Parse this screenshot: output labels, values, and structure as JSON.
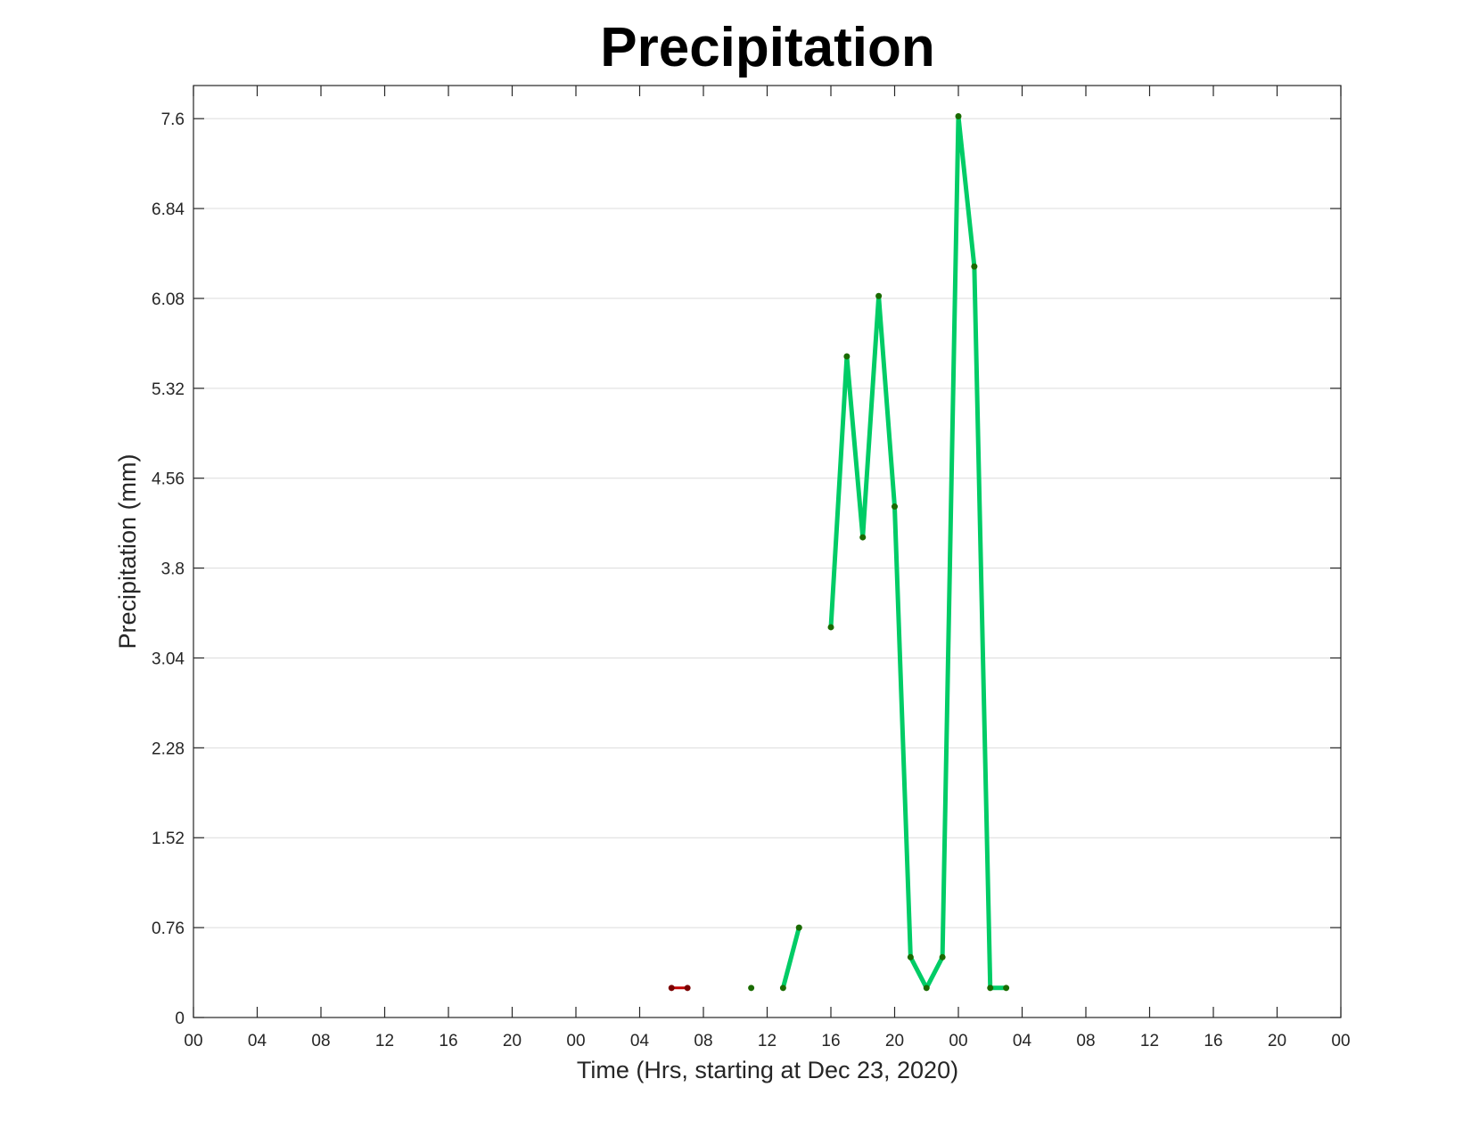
{
  "chart_data": {
    "type": "line",
    "title": "Precipitation",
    "xlabel": "Time (Hrs, starting at Dec 23, 2020)",
    "ylabel": "Precipitation (mm)",
    "x_unit": "hours",
    "xlim": [
      0,
      72
    ],
    "ylim": [
      0,
      7.88
    ],
    "x_tick_values": [
      0,
      4,
      8,
      12,
      16,
      20,
      24,
      28,
      32,
      36,
      40,
      44,
      48,
      52,
      56,
      60,
      64,
      68,
      72
    ],
    "x_tick_labels": [
      "00",
      "04",
      "08",
      "12",
      "16",
      "20",
      "00",
      "04",
      "08",
      "12",
      "16",
      "20",
      "00",
      "04",
      "08",
      "12",
      "16",
      "20",
      "00"
    ],
    "y_ticks": [
      0,
      0.76,
      1.52,
      2.28,
      3.04,
      3.8,
      4.56,
      5.32,
      6.08,
      6.84,
      7.6
    ],
    "y_tick_labels": [
      "0",
      "0.76",
      "1.52",
      "2.28",
      "3.04",
      "3.8",
      "4.56",
      "5.32",
      "6.08",
      "6.84",
      "7.6"
    ],
    "grid": "horizontal",
    "legend": "none",
    "series": [
      {
        "color": "#c00000",
        "marker_color": "#7a0000",
        "segments": [
          [
            [
              30,
              0.25
            ],
            [
              31,
              0.25
            ]
          ]
        ]
      },
      {
        "color": "#00cc66",
        "marker_color": "#1a6b00",
        "segments": [
          [
            [
              35,
              0.25
            ]
          ],
          [
            [
              37,
              0.25
            ],
            [
              38,
              0.76
            ]
          ],
          [
            [
              40,
              3.3
            ],
            [
              41,
              5.59
            ],
            [
              42,
              4.06
            ],
            [
              43,
              6.1
            ],
            [
              44,
              4.32
            ],
            [
              45,
              0.51
            ],
            [
              46,
              0.25
            ],
            [
              47,
              0.51
            ],
            [
              48,
              7.62
            ],
            [
              49,
              6.35
            ],
            [
              50,
              0.25
            ],
            [
              51,
              0.25
            ]
          ]
        ]
      }
    ]
  }
}
